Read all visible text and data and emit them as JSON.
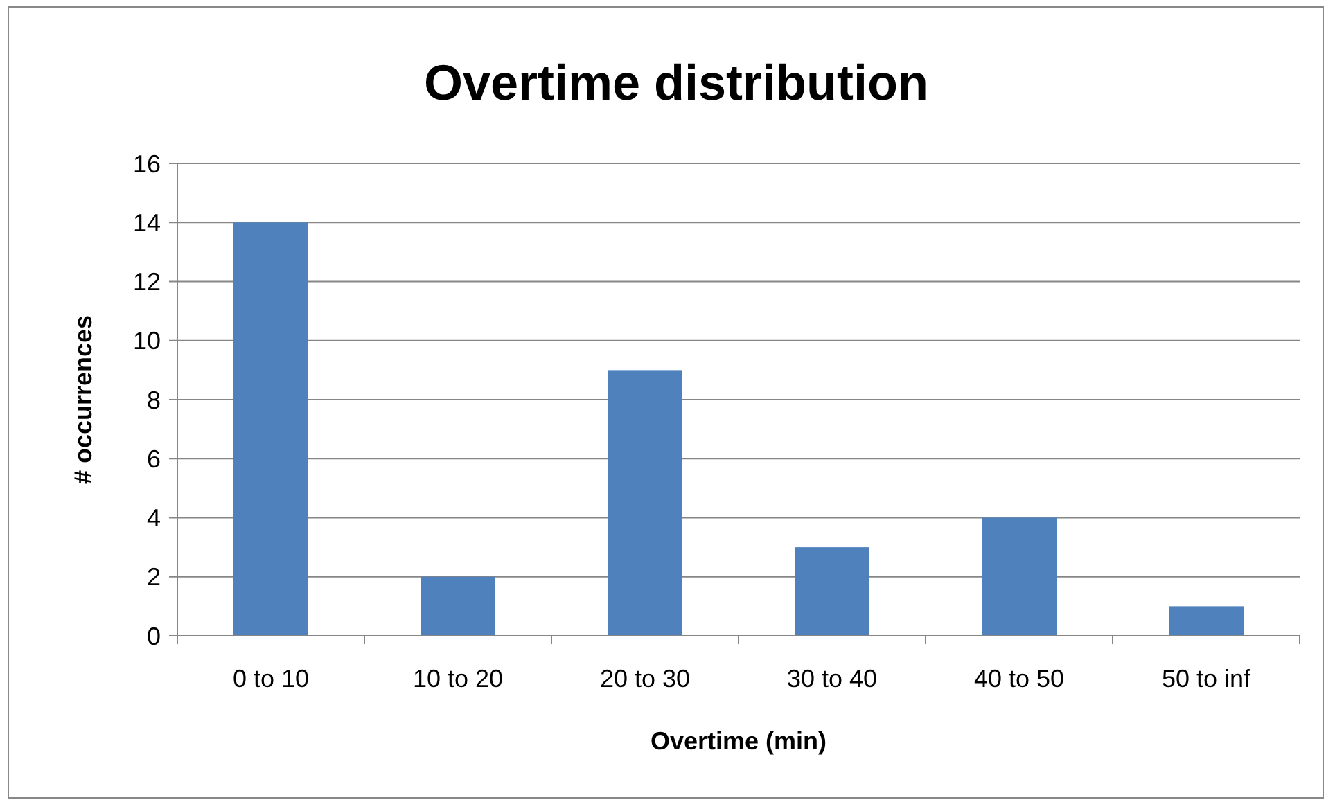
{
  "chart_data": {
    "type": "bar",
    "title": "Overtime distribution",
    "xlabel": "Overtime (min)",
    "ylabel": "# occurrences",
    "categories": [
      "0 to 10",
      "10 to 20",
      "20 to 30",
      "30 to 40",
      "40 to 50",
      "50 to inf"
    ],
    "values": [
      14,
      2,
      9,
      3,
      4,
      1
    ],
    "color": "#4f81bd",
    "ylim": [
      0,
      16
    ],
    "yticks": [
      0,
      2,
      4,
      6,
      8,
      10,
      12,
      14,
      16
    ],
    "grid": "y"
  }
}
